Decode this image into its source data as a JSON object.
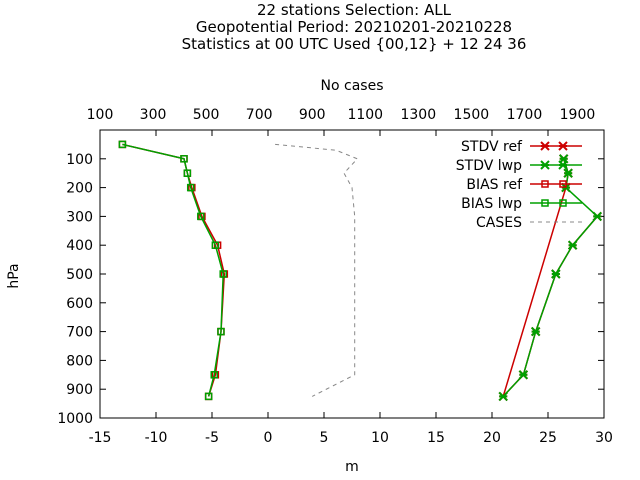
{
  "chart_data": {
    "type": "line",
    "title_lines": [
      "22 stations Selection: ALL",
      "Geopotential  Period: 20210201-20210228",
      "Statistics at 00 UTC  Used {00,12} + 12 24 36"
    ],
    "xlabel": "m",
    "ylabel": "hPa",
    "x2label": "No cases",
    "xlim": [
      -15,
      30
    ],
    "ylim": [
      1000,
      0
    ],
    "x2lim": [
      100,
      2000
    ],
    "x_ticks": [
      "-15",
      "-10",
      "-5",
      "0",
      "5",
      "10",
      "15",
      "20",
      "25",
      "30"
    ],
    "y_ticks": [
      "100",
      "200",
      "300",
      "400",
      "500",
      "600",
      "700",
      "800",
      "900",
      "1000"
    ],
    "x2_ticks": [
      "100",
      "300",
      "500",
      "700",
      "900",
      "1100",
      "1300",
      "1500",
      "1700",
      "1900"
    ],
    "grid": false,
    "legend_position": "top-right",
    "series": [
      {
        "name": "STDV ref",
        "color": "#cc0000",
        "marker": "x",
        "line": "solid",
        "points": [
          [
            29.4,
            300
          ],
          [
            27.2,
            400
          ],
          [
            25.7,
            500
          ],
          [
            23.9,
            700
          ],
          [
            22.8,
            850
          ],
          [
            21.0,
            925
          ],
          [
            26.6,
            200
          ],
          [
            26.8,
            150
          ],
          [
            26.4,
            100
          ]
        ]
      },
      {
        "name": "STDV lwp",
        "color": "#00a000",
        "marker": "x",
        "line": "solid",
        "points": [
          [
            26.4,
            100
          ],
          [
            26.8,
            150
          ],
          [
            26.6,
            200
          ],
          [
            29.4,
            300
          ],
          [
            27.2,
            400
          ],
          [
            25.7,
            500
          ],
          [
            23.9,
            700
          ],
          [
            22.8,
            850
          ],
          [
            21.0,
            925
          ]
        ]
      },
      {
        "name": "BIAS ref",
        "color": "#cc0000",
        "marker": "square",
        "line": "solid",
        "points": [
          [
            -13.0,
            50
          ],
          [
            -7.5,
            100
          ],
          [
            -7.2,
            150
          ],
          [
            -6.8,
            200
          ],
          [
            -5.9,
            300
          ],
          [
            -4.5,
            400
          ],
          [
            -3.9,
            500
          ],
          [
            -4.2,
            700
          ],
          [
            -4.7,
            850
          ],
          [
            -5.3,
            925
          ]
        ]
      },
      {
        "name": "BIAS lwp",
        "color": "#00a000",
        "marker": "square",
        "line": "solid",
        "points": [
          [
            -13.0,
            50
          ],
          [
            -7.5,
            100
          ],
          [
            -7.2,
            150
          ],
          [
            -6.9,
            200
          ],
          [
            -6.0,
            300
          ],
          [
            -4.7,
            400
          ],
          [
            -4.0,
            500
          ],
          [
            -4.2,
            700
          ],
          [
            -4.8,
            850
          ],
          [
            -5.3,
            925
          ]
        ]
      },
      {
        "name": "CASES",
        "color": "#888888",
        "marker": "none",
        "line": "dashed",
        "axis": "x2",
        "points": [
          [
            760,
            50
          ],
          [
            990,
            70
          ],
          [
            1070,
            100
          ],
          [
            1020,
            150
          ],
          [
            1050,
            200
          ],
          [
            1060,
            300
          ],
          [
            1060,
            400
          ],
          [
            1060,
            500
          ],
          [
            1060,
            700
          ],
          [
            1060,
            850
          ],
          [
            900,
            925
          ]
        ]
      }
    ]
  }
}
